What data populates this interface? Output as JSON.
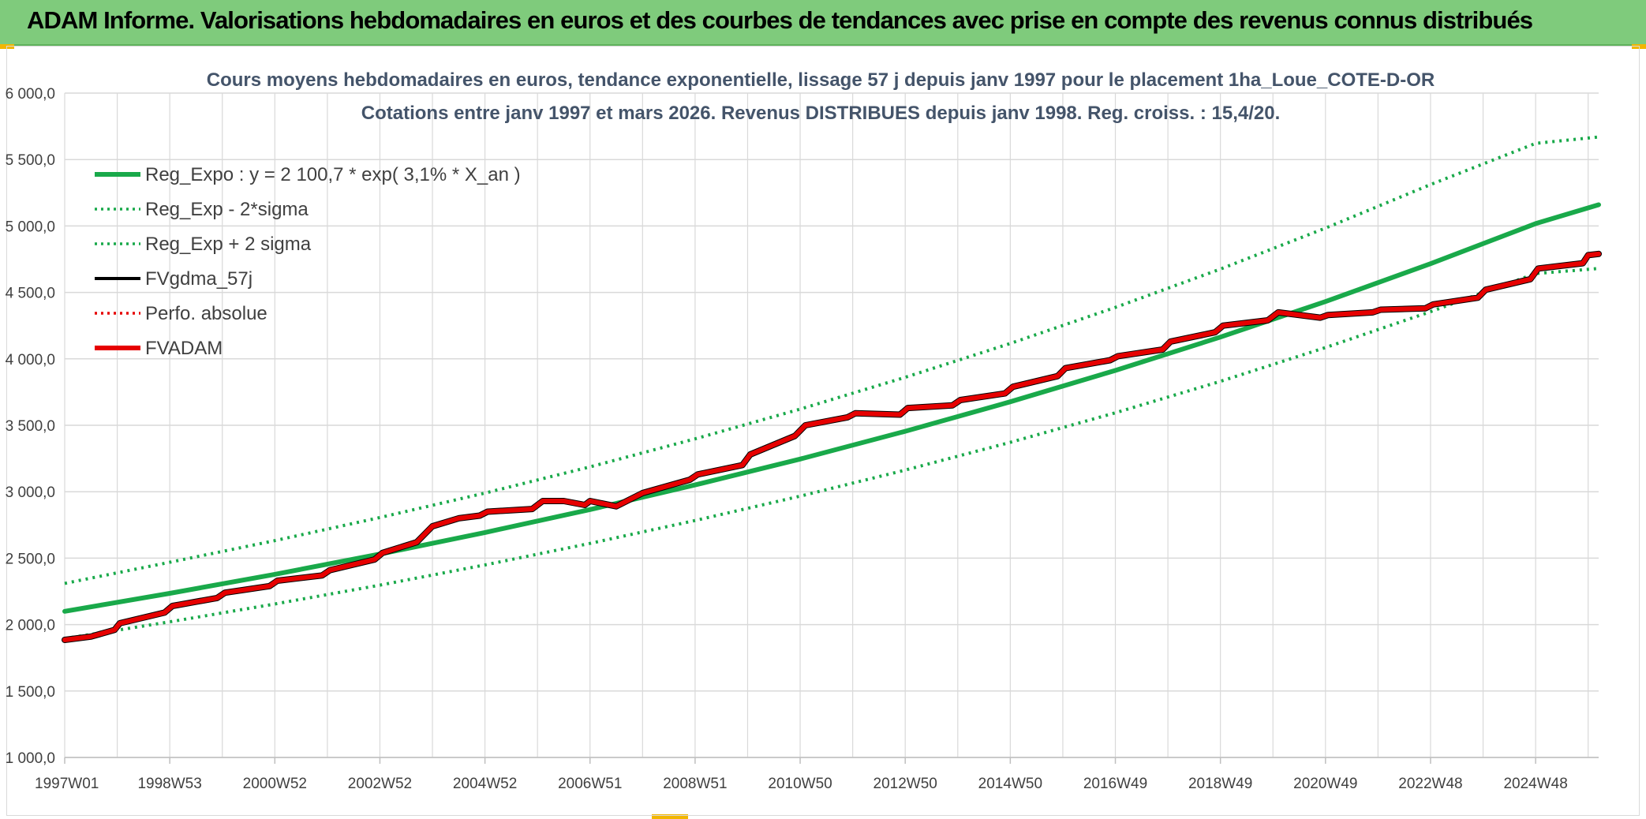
{
  "banner": {
    "title": "ADAM Informe. Valorisations hebdomadaires en euros et des courbes de tendances avec prise en compte des revenus connus distribués"
  },
  "colors": {
    "banner_bg": "#7fcb7c",
    "reg_green": "#19a94a",
    "fvgdma_black": "#000000",
    "fvadam_red": "#e60000",
    "grid": "#d9d9d9",
    "title": "#44546a"
  },
  "chart_data": {
    "type": "line",
    "title": "Cours moyens hebdomadaires en euros, tendance exponentielle, lissage 57 j depuis janv 1997 pour le placement 1ha_Loue_COTE-D-OR",
    "subtitle": "Cotations entre janv 1997 et mars 2026. Revenus DISTRIBUES depuis janv 1998. Reg. croiss. : 15,4/20.",
    "xlabel": "",
    "ylabel": "",
    "ylim": [
      1000,
      6000
    ],
    "y_ticks": [
      "1 000,0",
      "1 500,0",
      "2 000,0",
      "2 500,0",
      "3 000,0",
      "3 500,0",
      "4 000,0",
      "4 500,0",
      "5 000,0",
      "5 500,0",
      "6 000,0"
    ],
    "x_range_years": [
      1997.0,
      2026.2
    ],
    "x_ticks": [
      {
        "label": "1997W01",
        "year": 1997.0
      },
      {
        "label": "1998W53",
        "year": 1999.0
      },
      {
        "label": "2000W52",
        "year": 2001.0
      },
      {
        "label": "2002W52",
        "year": 2003.0
      },
      {
        "label": "2004W52",
        "year": 2005.0
      },
      {
        "label": "2006W51",
        "year": 2007.0
      },
      {
        "label": "2008W51",
        "year": 2009.0
      },
      {
        "label": "2010W50",
        "year": 2011.0
      },
      {
        "label": "2012W50",
        "year": 2013.0
      },
      {
        "label": "2014W50",
        "year": 2015.0
      },
      {
        "label": "2016W49",
        "year": 2017.0
      },
      {
        "label": "2018W49",
        "year": 2019.0
      },
      {
        "label": "2020W49",
        "year": 2021.0
      },
      {
        "label": "2022W48",
        "year": 2023.0
      },
      {
        "label": "2024W48",
        "year": 2025.0
      }
    ],
    "legend": [
      {
        "label": "Reg_Expo : y = 2 100,7 * exp( 3,1% *  X_an )",
        "style": "solid-thick",
        "color": "#19a94a"
      },
      {
        "label": "Reg_Exp - 2*sigma",
        "style": "dotted",
        "color": "#19a94a"
      },
      {
        "label": "Reg_Exp + 2 sigma",
        "style": "dotted",
        "color": "#19a94a"
      },
      {
        "label": "FVgdma_57j",
        "style": "solid",
        "color": "#000000"
      },
      {
        "label": "Perfo. absolue",
        "style": "dotted",
        "color": "#e60000"
      },
      {
        "label": "FVADAM",
        "style": "solid-thick",
        "color": "#e60000"
      }
    ],
    "series": [
      {
        "name": "Reg_Expo",
        "x": [
          1997,
          1999,
          2001,
          2003,
          2005,
          2007,
          2009,
          2011,
          2013,
          2015,
          2017,
          2019,
          2021,
          2023,
          2025,
          2026.2
        ],
        "values": [
          2100,
          2235,
          2378,
          2531,
          2693,
          2866,
          3051,
          3246,
          3455,
          3677,
          3913,
          4164,
          4431,
          4716,
          5018,
          5160
        ]
      },
      {
        "name": "Reg_Exp - 2*sigma",
        "x": [
          1997,
          1999,
          2001,
          2003,
          2005,
          2007,
          2009,
          2011,
          2013,
          2015,
          2017,
          2019,
          2021,
          2023,
          2025,
          2026.2
        ],
        "values": [
          1895,
          2021,
          2155,
          2297,
          2449,
          2611,
          2783,
          2967,
          3163,
          3372,
          3594,
          3831,
          4085,
          4355,
          4642,
          4680
        ]
      },
      {
        "name": "Reg_Exp + 2 sigma",
        "x": [
          1997,
          1999,
          2001,
          2003,
          2005,
          2007,
          2009,
          2011,
          2013,
          2015,
          2017,
          2019,
          2021,
          2023,
          2025,
          2026.2
        ],
        "values": [
          2310,
          2469,
          2632,
          2806,
          2990,
          3187,
          3398,
          3622,
          3861,
          4116,
          4387,
          4676,
          4984,
          5312,
          5622,
          5670
        ]
      },
      {
        "name": "FVADAM",
        "x": [
          1997.0,
          1997.5,
          1997.95,
          1998.05,
          1998.9,
          1999.05,
          1999.9,
          2000.05,
          2000.9,
          2001.05,
          2001.9,
          2002.05,
          2002.9,
          2003.05,
          2003.7,
          2004.0,
          2004.5,
          2004.9,
          2005.05,
          2005.9,
          2006.1,
          2006.5,
          2006.9,
          2007.0,
          2007.5,
          2008.0,
          2008.9,
          2009.05,
          2009.9,
          2010.05,
          2010.9,
          2011.1,
          2011.9,
          2012.05,
          2012.9,
          2013.05,
          2013.9,
          2014.05,
          2014.9,
          2015.05,
          2015.9,
          2016.05,
          2016.9,
          2017.05,
          2017.9,
          2018.05,
          2018.9,
          2019.05,
          2019.9,
          2020.1,
          2020.9,
          2021.05,
          2021.9,
          2022.05,
          2022.9,
          2023.05,
          2023.9,
          2024.05,
          2024.9,
          2025.05,
          2025.9,
          2026.0,
          2026.2
        ],
        "values": [
          1885,
          1910,
          1960,
          2010,
          2090,
          2140,
          2200,
          2240,
          2290,
          2330,
          2370,
          2410,
          2490,
          2540,
          2620,
          2740,
          2800,
          2820,
          2850,
          2870,
          2930,
          2930,
          2900,
          2930,
          2890,
          2990,
          3090,
          3130,
          3200,
          3280,
          3420,
          3500,
          3560,
          3590,
          3580,
          3630,
          3650,
          3690,
          3740,
          3790,
          3870,
          3930,
          3990,
          4020,
          4070,
          4130,
          4200,
          4250,
          4290,
          4350,
          4310,
          4330,
          4350,
          4370,
          4380,
          4410,
          4460,
          4520,
          4600,
          4680,
          4720,
          4780,
          4790
        ]
      }
    ]
  }
}
